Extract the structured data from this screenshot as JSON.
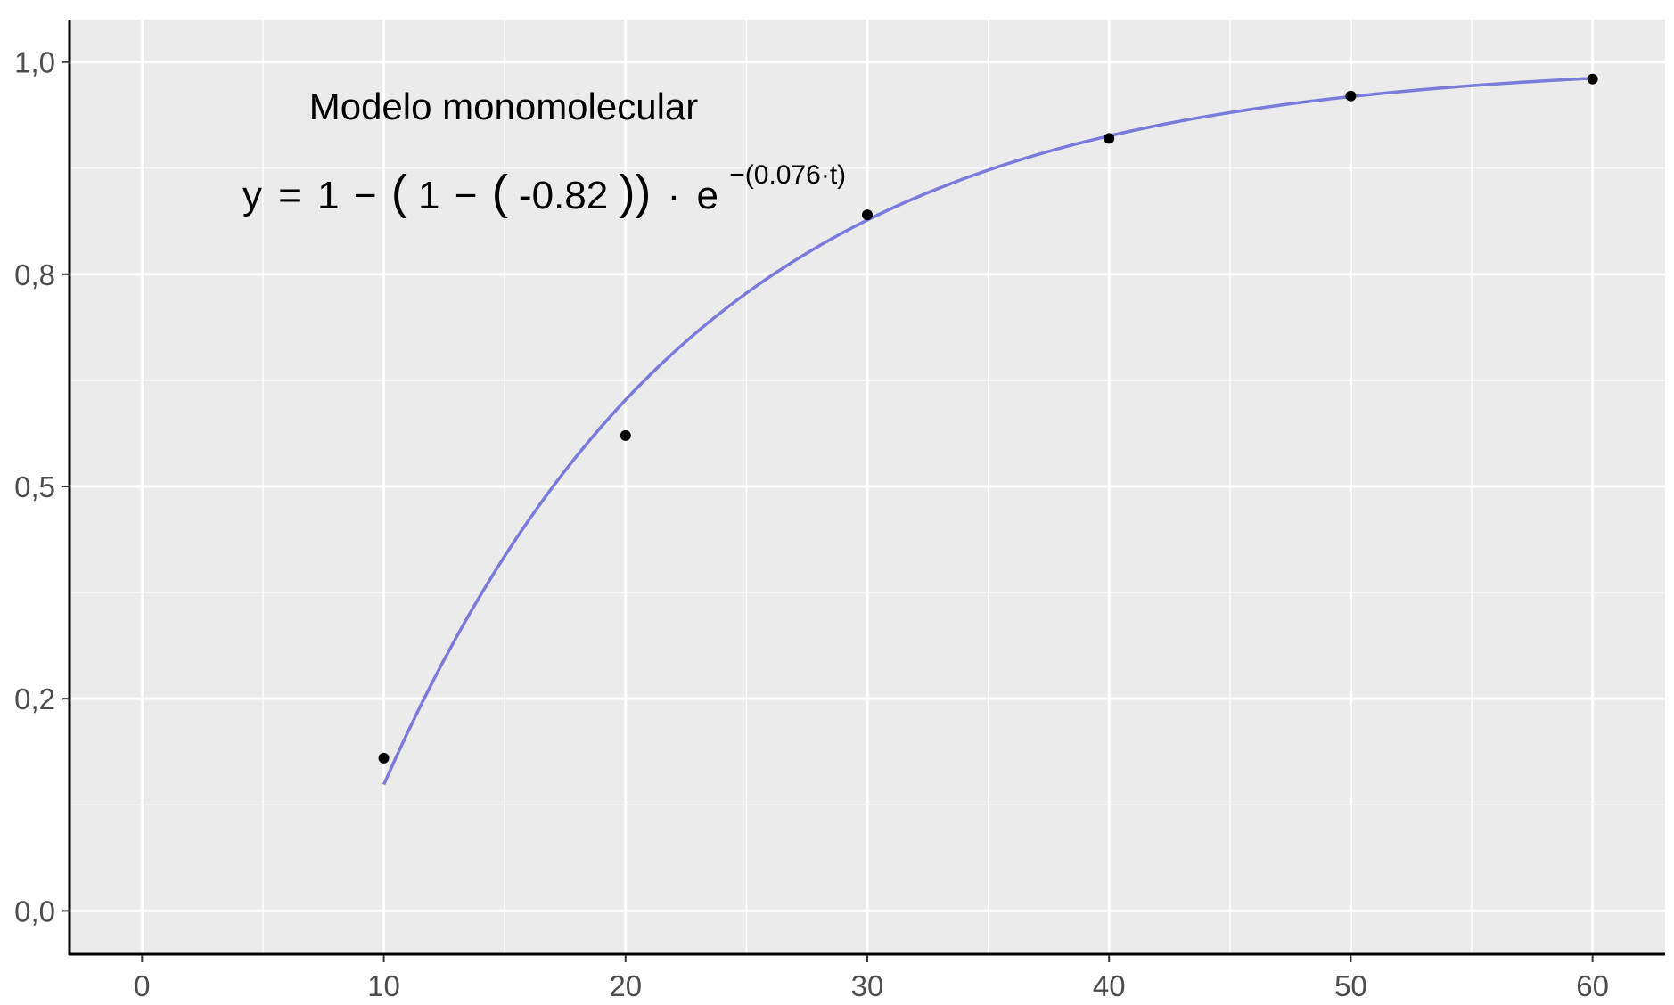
{
  "chart_data": {
    "type": "scatter",
    "title": "",
    "xlabel": "",
    "ylabel": "",
    "xlim": [
      -3,
      63
    ],
    "ylim": [
      -0.05,
      1.05
    ],
    "x_ticks": [
      0,
      10,
      20,
      30,
      40,
      50,
      60
    ],
    "x_tick_labels": [
      "0",
      "10",
      "20",
      "30",
      "40",
      "50",
      "60"
    ],
    "y_ticks": [
      0.0,
      0.25,
      0.5,
      0.75,
      1.0
    ],
    "y_tick_labels": [
      "0,0",
      "0,2",
      "0,5",
      "0,8",
      "1,0"
    ],
    "grid": true,
    "background_color": "#ebebeb",
    "grid_color": "#ffffff",
    "points": {
      "x": [
        10,
        20,
        30,
        40,
        50,
        60
      ],
      "y": [
        0.18,
        0.56,
        0.82,
        0.91,
        0.96,
        0.98
      ],
      "color": "#000000"
    },
    "fitted_curve": {
      "model": "monomolecular",
      "x_range": [
        10,
        60
      ],
      "b": -0.82,
      "r": 0.076,
      "color": "#7b7bdb"
    },
    "annotations": {
      "model_name": "Modelo monomolecular",
      "eq_lhs": "y",
      "eq_eq": "=",
      "eq_one": "1",
      "eq_minus": "−",
      "eq_open_outer": "(",
      "eq_one_inner": "1",
      "eq_minus_inner": "−",
      "eq_open_inner": "(",
      "eq_value": "-0.82",
      "eq_close": "))",
      "eq_dot": "·",
      "eq_e": "e",
      "eq_exponent": "−(0.076·t)"
    }
  }
}
